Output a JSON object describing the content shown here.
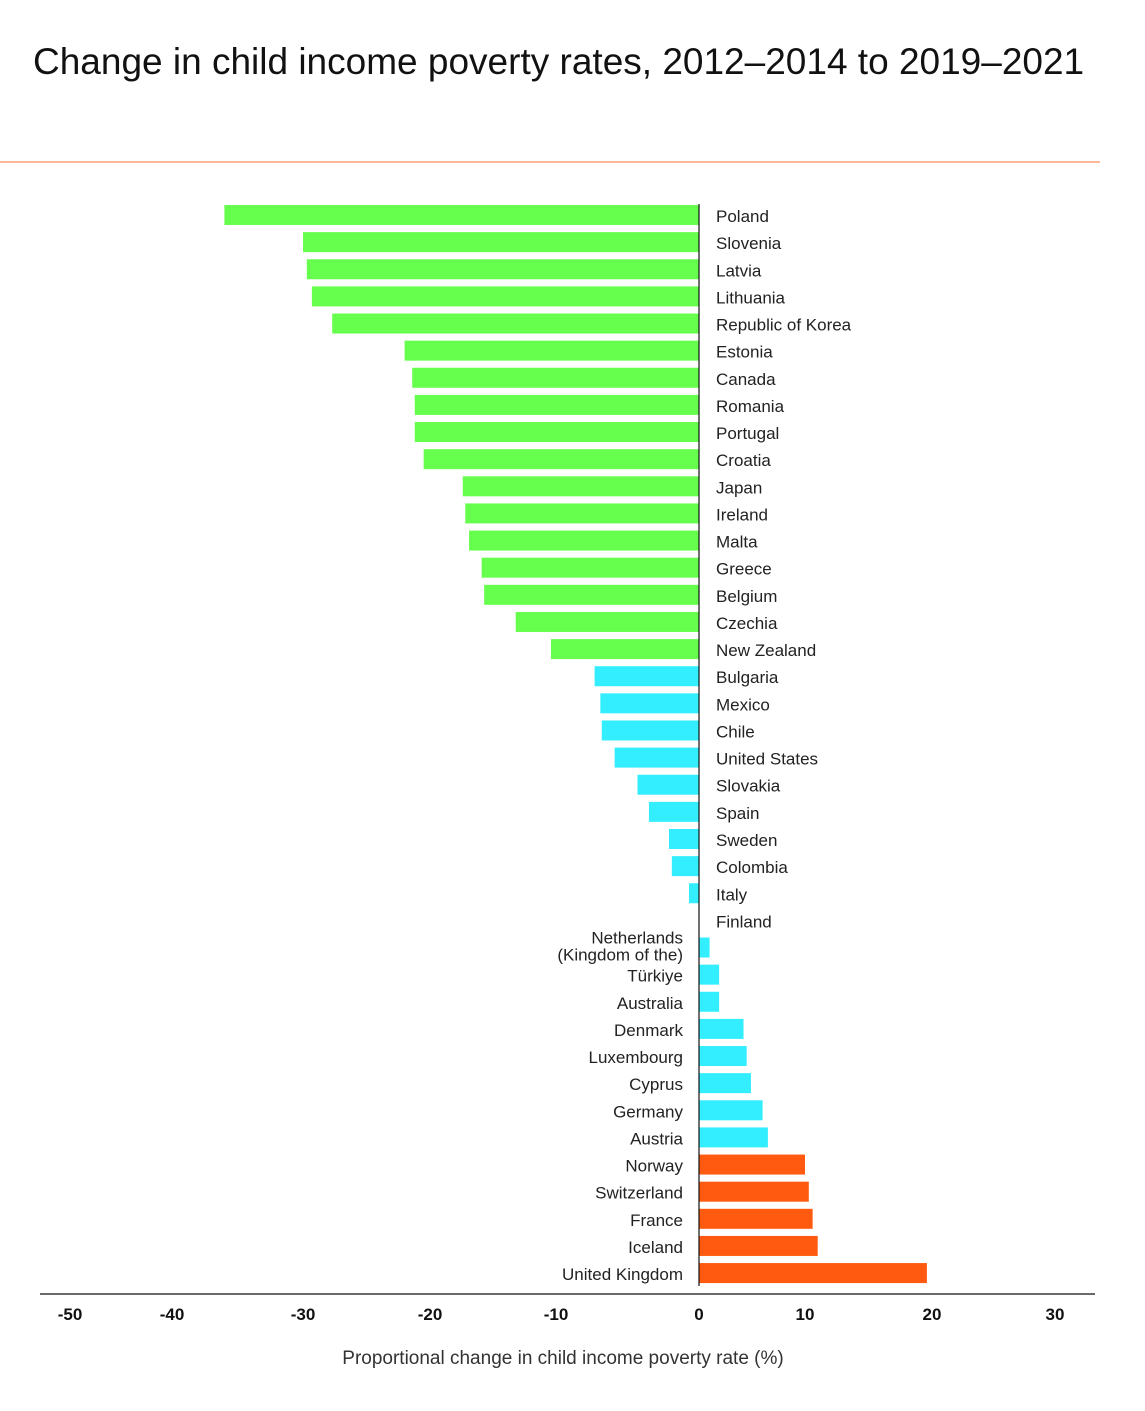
{
  "chart_data": {
    "type": "bar",
    "orientation": "horizontal",
    "title": "Change in child income poverty rates, 2012–2014 to 2019–2021",
    "xlabel": "Proportional change in child income poverty rate (%)",
    "ylabel": "",
    "xlim": [
      -50,
      30
    ],
    "x_ticks": [
      "-50",
      "-40",
      "-30",
      "-20",
      "-10",
      "0",
      "10",
      "20",
      "30"
    ],
    "x_tick_values": [
      -50,
      -40,
      -30,
      -20,
      -10,
      0,
      10,
      20,
      30
    ],
    "grid": false,
    "colors": {
      "large_decrease": "#66ff4d",
      "small_change": "#33eeff",
      "large_increase": "#ff5a0f",
      "rule": "#ffb899"
    },
    "categories": [
      "Poland",
      "Slovenia",
      "Latvia",
      "Lithuania",
      "Republic of Korea",
      "Estonia",
      "Canada",
      "Romania",
      "Portugal",
      "Croatia",
      "Japan",
      "Ireland",
      "Malta",
      "Greece",
      "Belgium",
      "Czechia",
      "New Zealand",
      "Bulgaria",
      "Mexico",
      "Chile",
      "United States",
      "Slovakia",
      "Spain",
      "Sweden",
      "Colombia",
      "Italy",
      "Finland",
      "Netherlands (Kingdom of the)",
      "Türkiye",
      "Australia",
      "Denmark",
      "Luxembourg",
      "Cyprus",
      "Germany",
      "Austria",
      "Norway",
      "Switzerland",
      "France",
      "Iceland",
      "United Kingdom"
    ],
    "values": [
      -36.0,
      -30.0,
      -29.7,
      -29.3,
      -27.7,
      -22.0,
      -21.4,
      -21.2,
      -21.2,
      -20.5,
      -17.4,
      -17.2,
      -16.9,
      -15.9,
      -15.7,
      -13.2,
      -10.4,
      -7.3,
      -6.9,
      -6.8,
      -5.9,
      -4.3,
      -3.5,
      -2.1,
      -1.9,
      -0.7,
      0.0,
      1.0,
      1.9,
      1.9,
      4.2,
      4.5,
      4.9,
      6.0,
      6.5,
      10.0,
      10.3,
      10.6,
      11.0,
      19.6
    ],
    "groups": [
      "large_decrease",
      "large_decrease",
      "large_decrease",
      "large_decrease",
      "large_decrease",
      "large_decrease",
      "large_decrease",
      "large_decrease",
      "large_decrease",
      "large_decrease",
      "large_decrease",
      "large_decrease",
      "large_decrease",
      "large_decrease",
      "large_decrease",
      "large_decrease",
      "large_decrease",
      "small_change",
      "small_change",
      "small_change",
      "small_change",
      "small_change",
      "small_change",
      "small_change",
      "small_change",
      "small_change",
      "small_change",
      "small_change",
      "small_change",
      "small_change",
      "small_change",
      "small_change",
      "small_change",
      "small_change",
      "small_change",
      "large_increase",
      "large_increase",
      "large_increase",
      "large_increase",
      "large_increase"
    ]
  }
}
